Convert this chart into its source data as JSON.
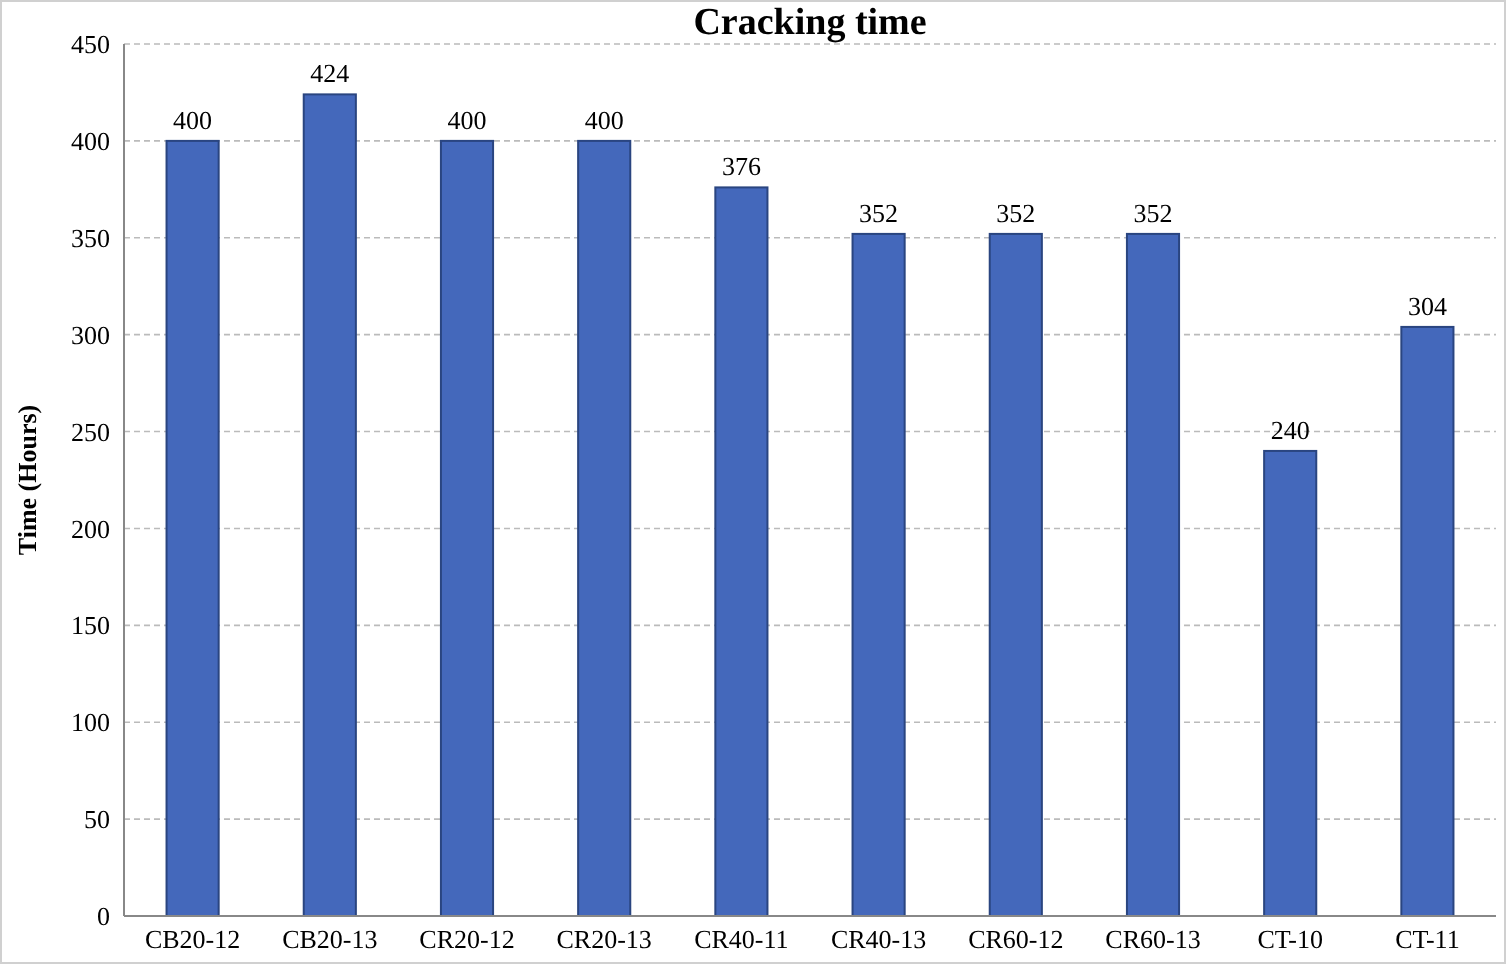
{
  "chart_data": {
    "type": "bar",
    "title": "Cracking time",
    "ylabel": "Time (Hours)",
    "categories": [
      "CB20-12",
      "CB20-13",
      "CR20-12",
      "CR20-13",
      "CR40-11",
      "CR40-13",
      "CR60-12",
      "CR60-13",
      "CT-10",
      "CT-11"
    ],
    "values": [
      400,
      424,
      400,
      400,
      376,
      352,
      352,
      352,
      240,
      304
    ],
    "color": "#4468bb",
    "ylim": [
      0,
      450
    ],
    "yticks": [
      0,
      50,
      100,
      150,
      200,
      250,
      300,
      350,
      400,
      450
    ],
    "grid": "y",
    "data_labels": true
  }
}
